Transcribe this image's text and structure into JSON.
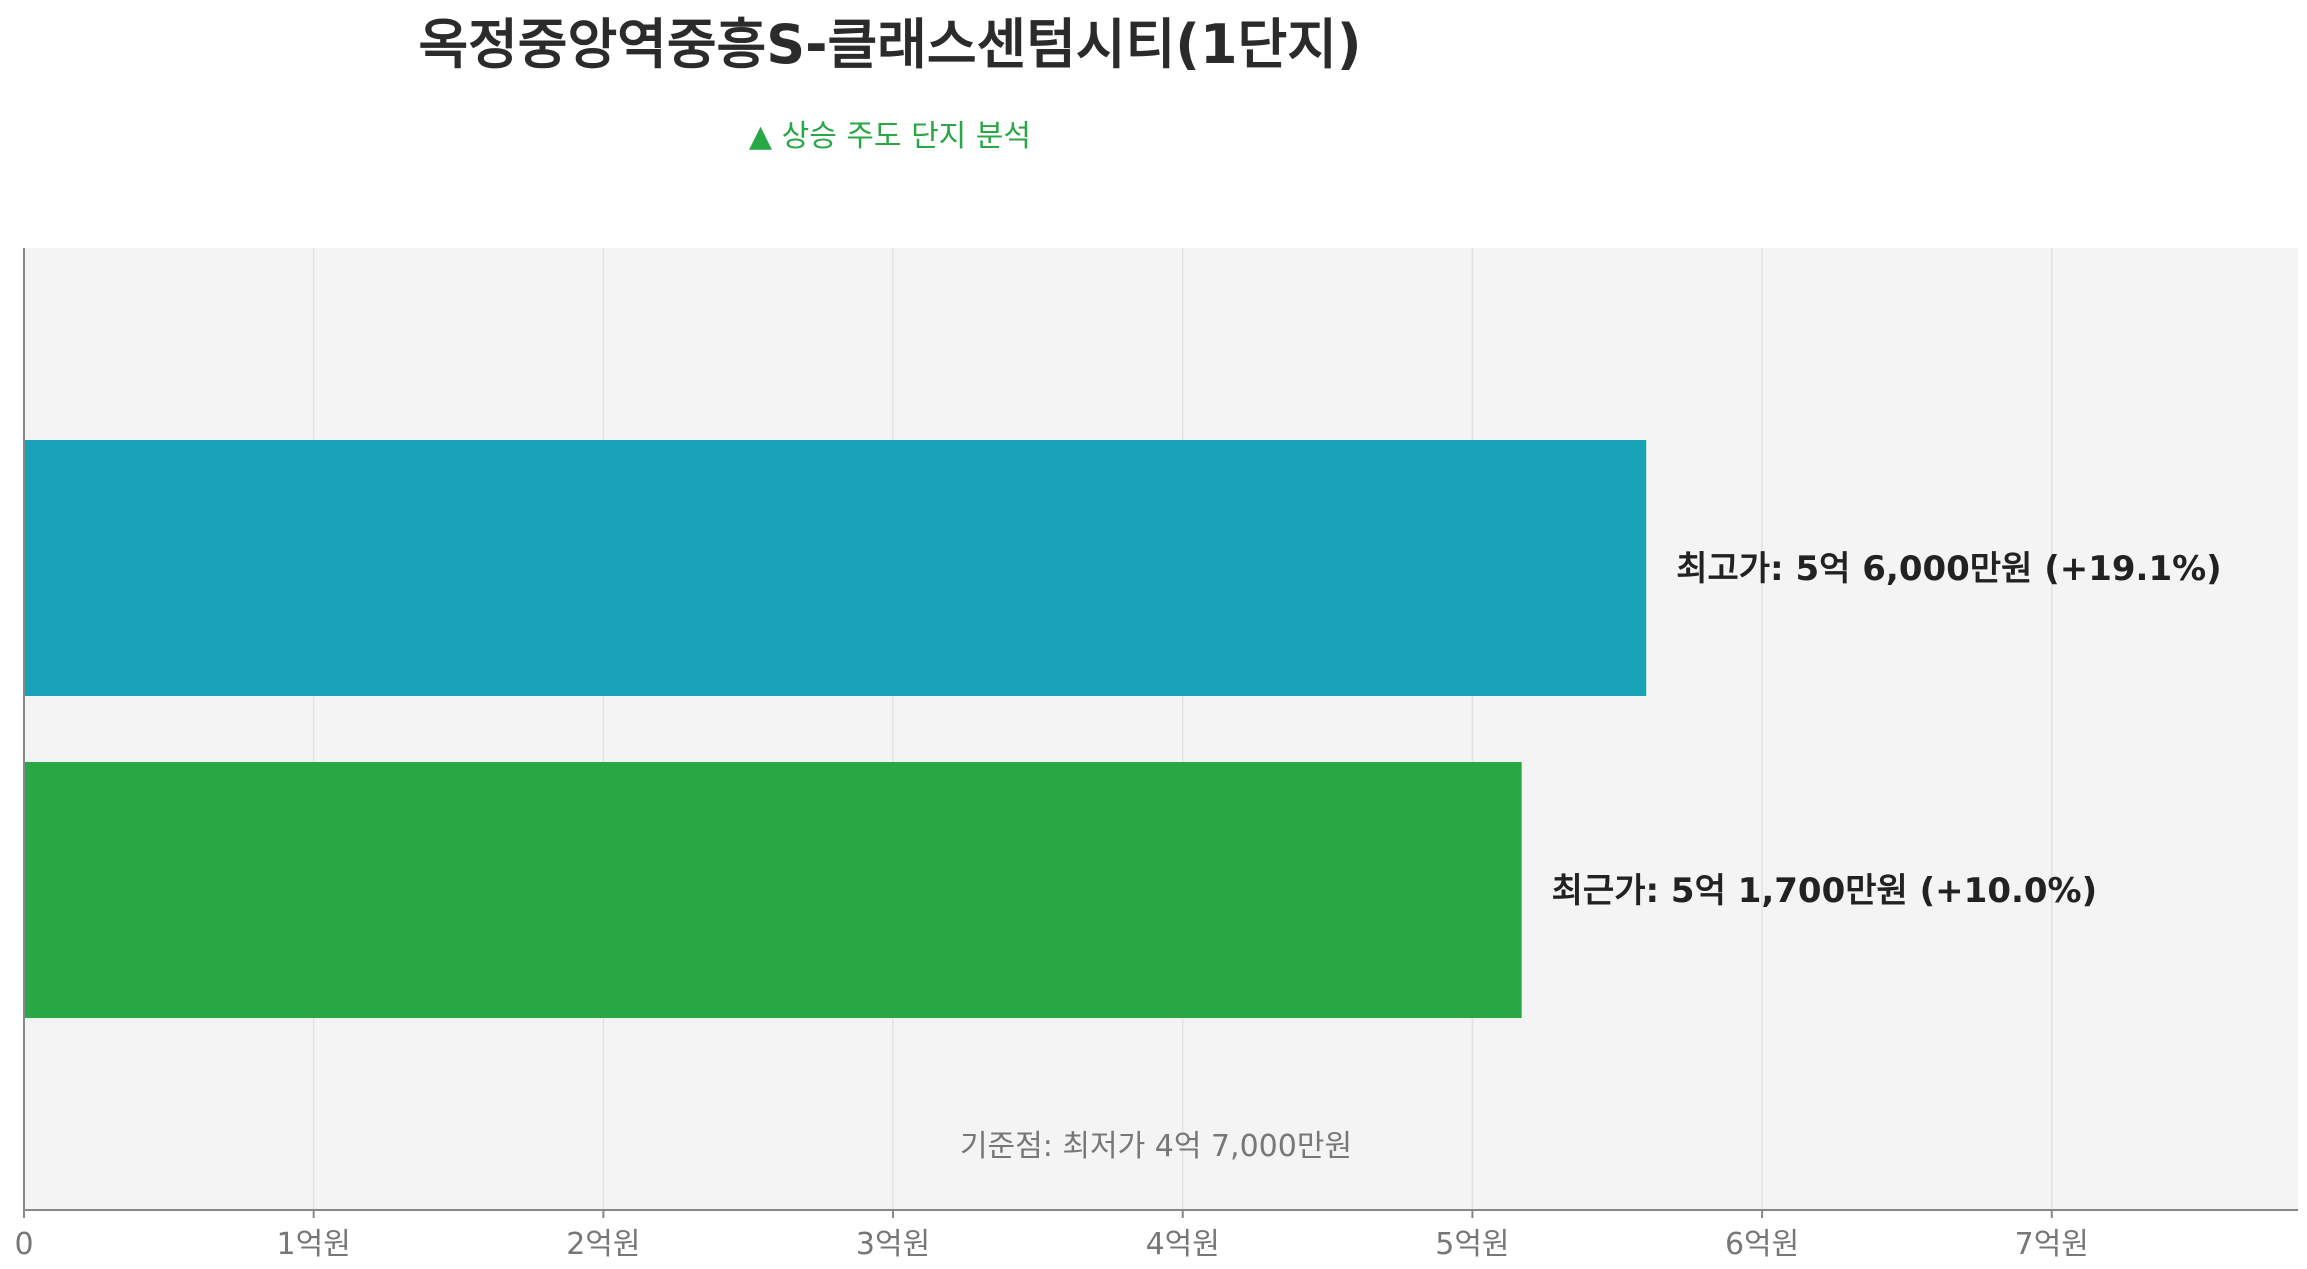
{
  "title": "옥정중앙역중흥S-클래스센텀시티(1단지)",
  "subtitle": "▲ 상승 주도 단지 분석",
  "colors": {
    "plot_bg": "#f4f4f4",
    "grid": "#e2e2e2",
    "axis": "#888888",
    "tick_text": "#777777",
    "bar_high": "#18a2b8",
    "bar_recent": "#28a745",
    "label_text": "#222222",
    "baseline_text": "#777777"
  },
  "chart_data": {
    "type": "bar",
    "orientation": "horizontal",
    "xlim": [
      0,
      7.85
    ],
    "x_unit": "억원",
    "x_ticks": [
      0,
      1,
      2,
      3,
      4,
      5,
      6,
      7
    ],
    "x_tick_labels": [
      "0",
      "1억원",
      "2억원",
      "3억원",
      "4억원",
      "5억원",
      "6억원",
      "7억원"
    ],
    "grid": true,
    "bars": [
      {
        "key": "high",
        "value": 5.6,
        "label": "최고가: 5억 6,000만원 (+19.1%)"
      },
      {
        "key": "recent",
        "value": 5.17,
        "label": "최근가: 5억 1,700만원 (+10.0%)"
      }
    ],
    "annotation": "기준점: 최저가 4억 7,000만원"
  }
}
